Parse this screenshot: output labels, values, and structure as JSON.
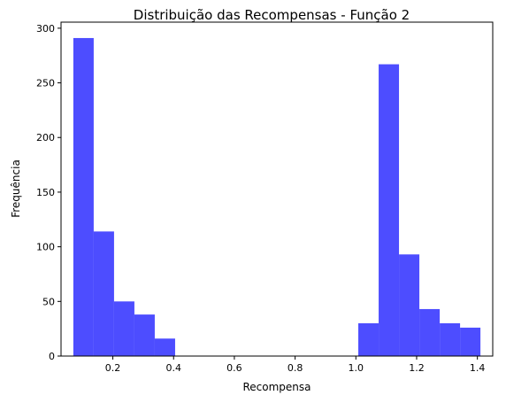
{
  "chart_data": {
    "type": "bar",
    "title": "Distribuição das Recompensas - Função 2",
    "xlabel": "Recompensa",
    "ylabel": "Frequência",
    "xlim": [
      0.0295,
      1.4505
    ],
    "ylim": [
      0,
      305.55
    ],
    "xticks": [
      0.2,
      0.4,
      0.6,
      0.8,
      1.0,
      1.2,
      1.4
    ],
    "xtick_labels": [
      "0.2",
      "0.4",
      "0.6",
      "0.8",
      "1.0",
      "1.2",
      "1.4"
    ],
    "yticks": [
      0,
      50,
      100,
      150,
      200,
      250,
      300
    ],
    "ytick_labels": [
      "0",
      "50",
      "100",
      "150",
      "200",
      "250",
      "300"
    ],
    "bar_color": "#4d4dff",
    "grid": false,
    "bins": [
      {
        "x0": 0.07,
        "x1": 0.137,
        "value": 291
      },
      {
        "x0": 0.137,
        "x1": 0.204,
        "value": 114
      },
      {
        "x0": 0.204,
        "x1": 0.271,
        "value": 50
      },
      {
        "x0": 0.271,
        "x1": 0.338,
        "value": 38
      },
      {
        "x0": 0.338,
        "x1": 0.405,
        "value": 16
      },
      {
        "x0": 0.405,
        "x1": 0.472,
        "value": 0
      },
      {
        "x0": 0.472,
        "x1": 0.539,
        "value": 0
      },
      {
        "x0": 0.539,
        "x1": 0.606,
        "value": 0
      },
      {
        "x0": 0.606,
        "x1": 0.673,
        "value": 0
      },
      {
        "x0": 0.673,
        "x1": 0.74,
        "value": 0
      },
      {
        "x0": 0.74,
        "x1": 0.807,
        "value": 0
      },
      {
        "x0": 0.807,
        "x1": 0.874,
        "value": 0
      },
      {
        "x0": 0.874,
        "x1": 0.941,
        "value": 0
      },
      {
        "x0": 0.941,
        "x1": 1.008,
        "value": 0
      },
      {
        "x0": 1.008,
        "x1": 1.075,
        "value": 30
      },
      {
        "x0": 1.075,
        "x1": 1.142,
        "value": 267
      },
      {
        "x0": 1.142,
        "x1": 1.209,
        "value": 93
      },
      {
        "x0": 1.209,
        "x1": 1.276,
        "value": 43
      },
      {
        "x0": 1.276,
        "x1": 1.343,
        "value": 30
      },
      {
        "x0": 1.343,
        "x1": 1.41,
        "value": 26
      }
    ]
  }
}
